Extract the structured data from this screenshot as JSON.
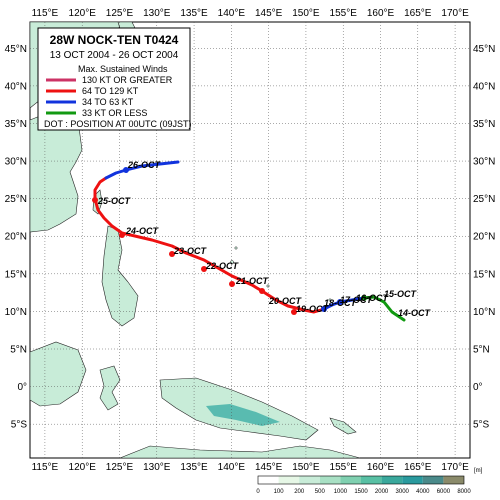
{
  "map": {
    "lon_labels": [
      "115°E",
      "120°E",
      "125°E",
      "130°E",
      "135°E",
      "140°E",
      "145°E",
      "150°E",
      "155°E",
      "160°E",
      "165°E",
      "170°E"
    ],
    "lat_labels": [
      "45°N",
      "40°N",
      "35°N",
      "30°N",
      "25°N",
      "20°N",
      "15°N",
      "10°N",
      "5°N",
      "0°",
      "5°S"
    ],
    "ocean_color": "#ffffff",
    "land_color": "#c8ecd8",
    "high_land_color": "#2aa6a0"
  },
  "legend": {
    "title": "28W  NOCK-TEN  T0424",
    "period": "13 OCT 2004 - 26 OCT 2004",
    "winds_heading": "Max. Sustained Winds",
    "items": [
      {
        "label": "130 KT OR GREATER",
        "color": "#cc3366"
      },
      {
        "label": "64 TO 129 KT",
        "color": "#ee1111"
      },
      {
        "label": "34 TO 63 KT",
        "color": "#1133dd"
      },
      {
        "label": "33 KT OR LESS",
        "color": "#119911"
      }
    ],
    "dot_note": "DOT : POSITION AT 00UTC (09JST)"
  },
  "track": {
    "dates": [
      "14-OCT",
      "15-OCT",
      "16-OCT",
      "17-OCT",
      "18-OCT",
      "19-OCT",
      "20-OCT",
      "21-OCT",
      "22-OCT",
      "23-OCT",
      "24-OCT",
      "25-OCT",
      "26-OCT"
    ],
    "date_labels": [
      "14-OCT",
      "15-OCT",
      "16-OCT",
      "17-OCT",
      "18-OCT",
      "19-OCT",
      "20-OCT",
      "21-OCT",
      "22-OCT",
      "23-OCT",
      "24-OCT",
      "25-OCT",
      "26-OCT"
    ]
  },
  "colorbar": {
    "unit": "[m]",
    "labels": [
      "0",
      "100",
      "200",
      "500",
      "1000",
      "1500",
      "2000",
      "3000",
      "4000",
      "6000",
      "8000"
    ]
  }
}
